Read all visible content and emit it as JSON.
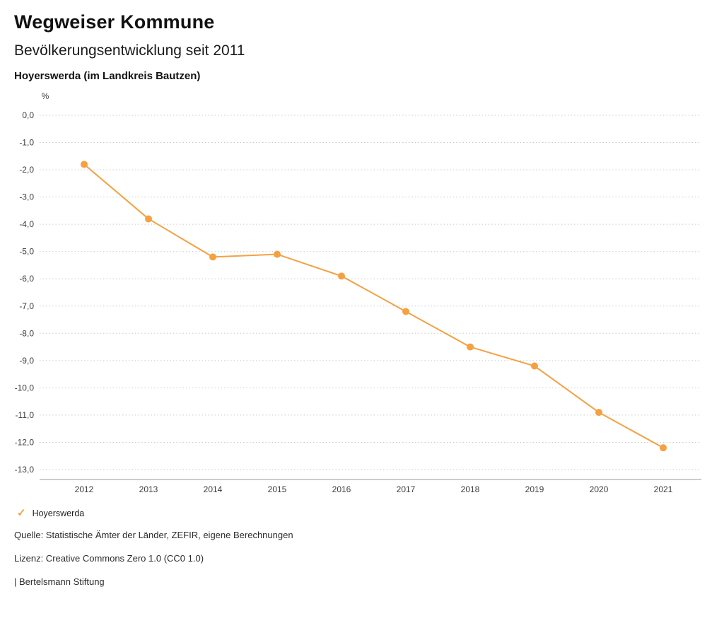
{
  "header": {
    "title": "Wegweiser Kommune",
    "subtitle": "Bevölkerungsentwicklung seit 2011",
    "region": "Hoyerswerda (im Landkreis Bautzen)"
  },
  "chart_data": {
    "type": "line",
    "title": "Bevölkerungsentwicklung seit 2011",
    "unit_label": "%",
    "x": [
      "2012",
      "2013",
      "2014",
      "2015",
      "2016",
      "2017",
      "2018",
      "2019",
      "2020",
      "2021"
    ],
    "series": [
      {
        "name": "Hoyerswerda",
        "color": "#F5A142",
        "values": [
          -1.8,
          -3.8,
          -5.2,
          -5.1,
          -5.9,
          -7.2,
          -8.5,
          -9.2,
          -10.9,
          -12.2
        ]
      }
    ],
    "ylim": [
      -13.0,
      0.0
    ],
    "ytick_step": 1.0,
    "ytick_decimal": "comma",
    "grid": "horizontal-dotted",
    "legend_position": "bottom-left"
  },
  "legend": {
    "items": [
      {
        "label": "Hoyerswerda",
        "color": "#F5A142",
        "marker": "check"
      }
    ]
  },
  "footer": {
    "source": "Quelle: Statistische Ämter der Länder, ZEFIR, eigene Berechnungen",
    "license": "Lizenz: Creative Commons Zero 1.0 (CC0 1.0)",
    "attribution": "| Bertelsmann Stiftung"
  }
}
